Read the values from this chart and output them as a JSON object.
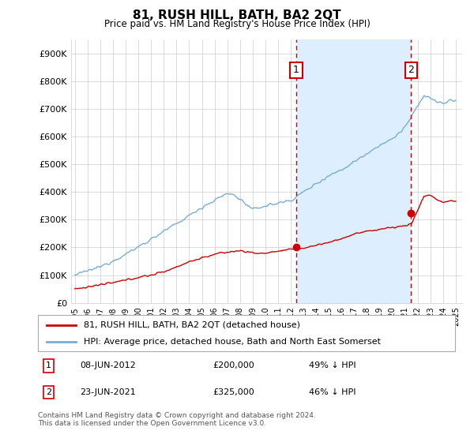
{
  "title": "81, RUSH HILL, BATH, BA2 2QT",
  "subtitle": "Price paid vs. HM Land Registry's House Price Index (HPI)",
  "hpi_color": "#7aadd4",
  "hpi_fill_color": "#ddeeff",
  "price_color": "#cc0000",
  "dashed_color": "#cc0000",
  "ylim": [
    0,
    950000
  ],
  "yticks": [
    0,
    100000,
    200000,
    300000,
    400000,
    500000,
    600000,
    700000,
    800000,
    900000
  ],
  "ytick_labels": [
    "£0",
    "£100K",
    "£200K",
    "£300K",
    "£400K",
    "£500K",
    "£600K",
    "£700K",
    "£800K",
    "£900K"
  ],
  "xlim_start": 1994.7,
  "xlim_end": 2025.5,
  "transaction1_date": 2012.44,
  "transaction1_price": 200000,
  "transaction2_date": 2021.47,
  "transaction2_price": 325000,
  "legend_line1": "81, RUSH HILL, BATH, BA2 2QT (detached house)",
  "legend_line2": "HPI: Average price, detached house, Bath and North East Somerset",
  "footnote": "Contains HM Land Registry data © Crown copyright and database right 2024.\nThis data is licensed under the Open Government Licence v3.0.",
  "background_color": "#ffffff",
  "grid_color": "#cccccc"
}
